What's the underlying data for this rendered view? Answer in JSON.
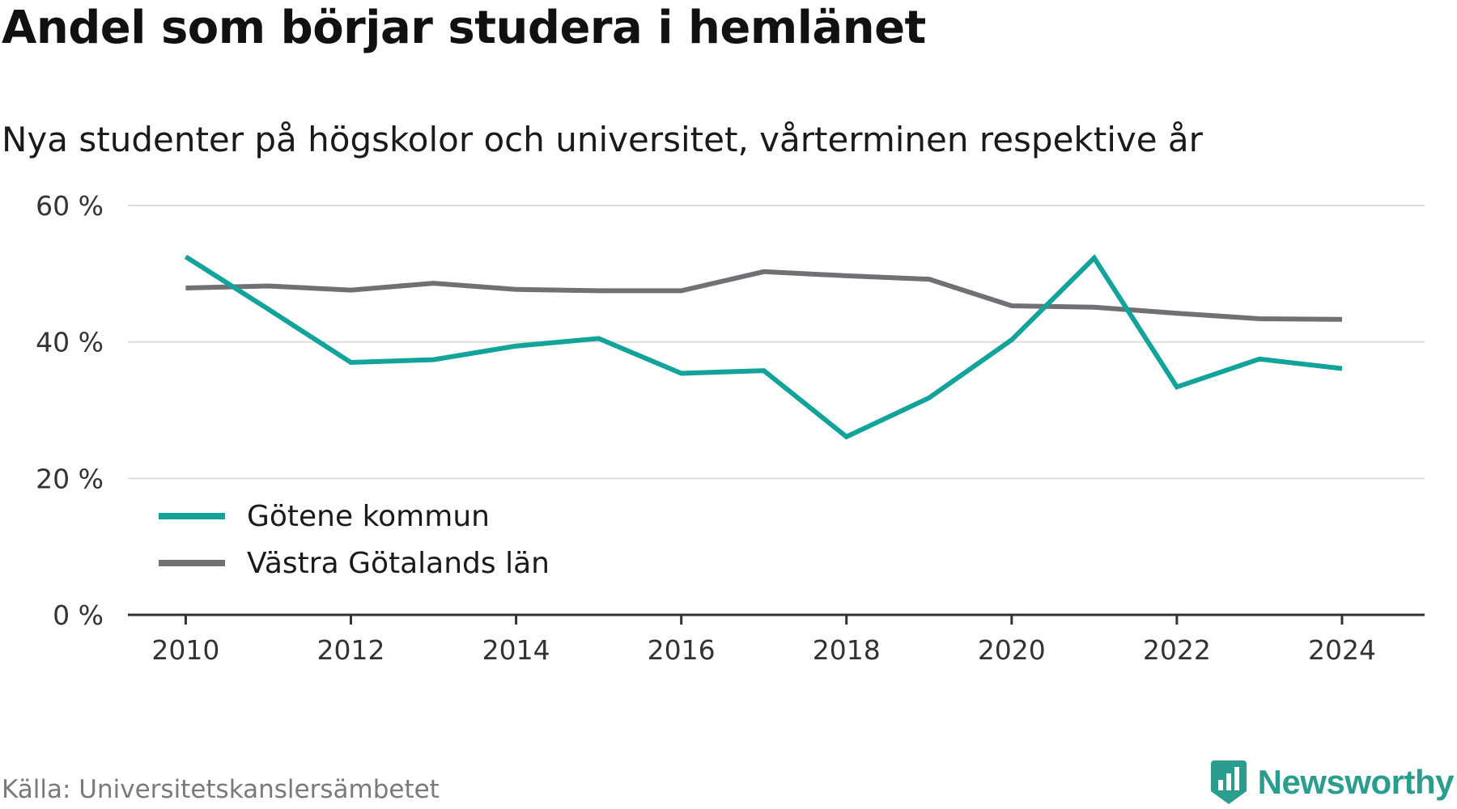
{
  "header": {
    "title": "Andel som börjar studera i hemlänet",
    "subtitle": "Nya studenter på högskolor och universitet, vårterminen respektive år"
  },
  "footer": {
    "source": "Källa: Universitetskanslersämbetet",
    "brand": "Newsworthy",
    "brand_icon": "newsworthy-logo-icon",
    "brand_color": "#2a9d8f"
  },
  "chart_data": {
    "type": "line",
    "x": [
      2010,
      2011,
      2012,
      2013,
      2014,
      2015,
      2016,
      2017,
      2018,
      2019,
      2020,
      2021,
      2022,
      2023,
      2024
    ],
    "x_ticks": [
      "2010",
      "2012",
      "2014",
      "2016",
      "2018",
      "2020",
      "2022",
      "2024"
    ],
    "y_ticks": [
      "0 %",
      "20 %",
      "40 %",
      "60 %"
    ],
    "ylim": [
      0,
      60
    ],
    "xlim": [
      2009.3,
      2025.0
    ],
    "grid": true,
    "legend_position": "bottom-left",
    "series": [
      {
        "name": "Götene kommun",
        "color": "#12a39a",
        "values": [
          52.5,
          44.8,
          37.0,
          37.4,
          39.4,
          40.5,
          35.4,
          35.8,
          26.1,
          31.8,
          40.3,
          52.3,
          33.4,
          37.5,
          36.1
        ]
      },
      {
        "name": "Västra Götalands län",
        "color": "#717075",
        "values": [
          47.9,
          48.2,
          47.6,
          48.6,
          47.7,
          47.5,
          47.5,
          50.3,
          49.7,
          49.2,
          45.3,
          45.1,
          44.2,
          43.4,
          43.3
        ]
      }
    ]
  }
}
